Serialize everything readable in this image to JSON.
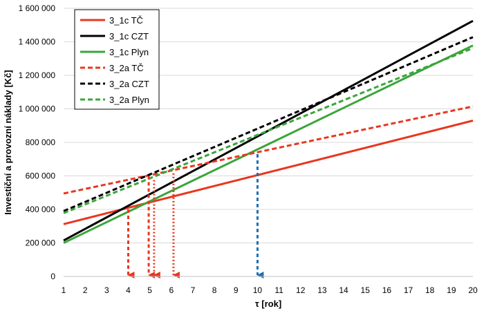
{
  "chart_data": {
    "type": "line",
    "xlabel": "τ [rok]",
    "ylabel": "Investiční a provozní náklady [Kč]",
    "xlim": [
      1,
      20
    ],
    "ylim": [
      0,
      1600000
    ],
    "x_ticks": [
      "1",
      "2",
      "3",
      "4",
      "5",
      "6",
      "7",
      "8",
      "9",
      "10",
      "11",
      "12",
      "13",
      "14",
      "15",
      "16",
      "17",
      "18",
      "19",
      "20"
    ],
    "y_ticks": [
      "0",
      "200 000",
      "400 000",
      "600 000",
      "800 000",
      "1 000 000",
      "1 200 000",
      "1 400 000",
      "1 600 000"
    ],
    "grid": "horizontal",
    "legend_position": "top-left",
    "series": [
      {
        "name": "3_1c TČ",
        "color": "#e8371f",
        "style": "solid",
        "x": [
          1,
          20
        ],
        "y": [
          312000,
          930000
        ]
      },
      {
        "name": "3_1c CZT",
        "color": "#000000",
        "style": "solid",
        "x": [
          1,
          20
        ],
        "y": [
          215000,
          1525000
        ]
      },
      {
        "name": "3_1c Plyn",
        "color": "#3aa53a",
        "style": "solid",
        "x": [
          1,
          20
        ],
        "y": [
          200000,
          1378000
        ]
      },
      {
        "name": "3_2a TČ",
        "color": "#e8371f",
        "style": "dashed",
        "x": [
          1,
          20
        ],
        "y": [
          495000,
          1015000
        ]
      },
      {
        "name": "3_2a CZT",
        "color": "#000000",
        "style": "dashed",
        "x": [
          1,
          20
        ],
        "y": [
          390000,
          1428000
        ]
      },
      {
        "name": "3_2a Plyn",
        "color": "#3aa53a",
        "style": "dashed",
        "x": [
          1,
          20
        ],
        "y": [
          378000,
          1362000
        ]
      }
    ],
    "annotations": [
      {
        "type": "dashed-arrow",
        "color": "#e8371f",
        "x": 4,
        "y_from": 400000,
        "y_to": 0
      },
      {
        "type": "dashed-arrow",
        "color": "#e8371f",
        "x": 4.95,
        "y_from": 600000,
        "y_to": 0
      },
      {
        "type": "dotted-arrow",
        "color": "#e8371f",
        "x": 5.2,
        "y_from": 575000,
        "y_to": 0
      },
      {
        "type": "dotted-arrow",
        "color": "#e8371f",
        "x": 6.1,
        "y_from": 615000,
        "y_to": 0
      },
      {
        "type": "dashed-arrow",
        "color": "#1f6fb5",
        "x": 10,
        "y_from": 730000,
        "y_to": 0
      }
    ]
  }
}
